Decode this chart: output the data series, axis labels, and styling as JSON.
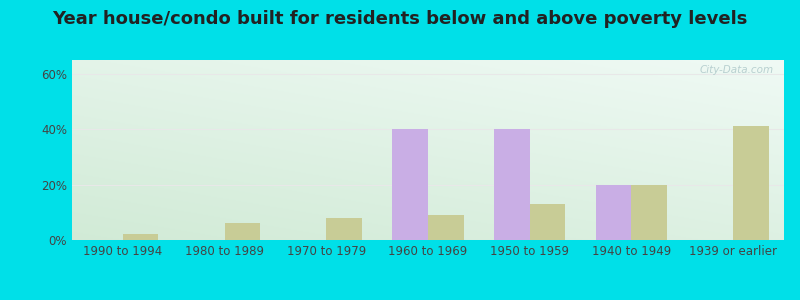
{
  "categories": [
    "1990 to 1994",
    "1980 to 1989",
    "1970 to 1979",
    "1960 to 1969",
    "1950 to 1959",
    "1940 to 1949",
    "1939 or earlier"
  ],
  "below_poverty": [
    0,
    0,
    0,
    40,
    40,
    20,
    0
  ],
  "above_poverty": [
    2,
    6,
    8,
    9,
    13,
    20,
    41
  ],
  "below_color": "#c9aee5",
  "above_color": "#c8cc96",
  "title": "Year house/condo built for residents below and above poverty levels",
  "ylabel_ticks": [
    "0%",
    "20%",
    "40%",
    "60%"
  ],
  "ytick_vals": [
    0,
    20,
    40,
    60
  ],
  "ylim": [
    0,
    65
  ],
  "bg_outer": "#00e0e8",
  "bg_grad_top_left": "#d8ede0",
  "bg_grad_top_right": "#f0f8f8",
  "bg_grad_bottom": "#d8ecd8",
  "bar_width": 0.35,
  "title_fontsize": 13,
  "tick_fontsize": 8.5,
  "legend_fontsize": 9.5,
  "grid_color": "#e8e8e8",
  "watermark_color": "#b8d0d0"
}
